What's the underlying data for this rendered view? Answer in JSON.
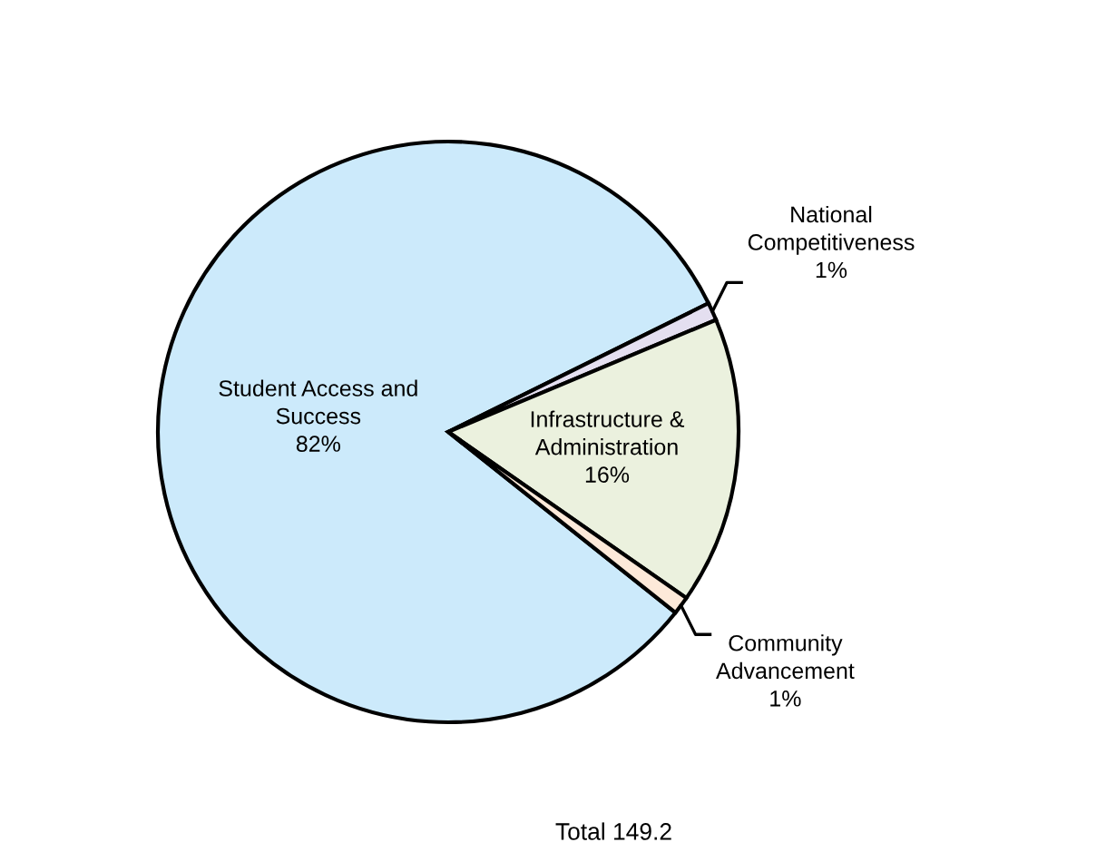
{
  "chart_data": {
    "type": "pie",
    "categories": [
      "Student Access and\nSuccess",
      "National\nCompetitiveness",
      "Infrastructure &\nAdministration",
      "Community\nAdvancement"
    ],
    "values": [
      82,
      1,
      16,
      1
    ],
    "colors": [
      "#cceafb",
      "#e4dff0",
      "#ebf1de",
      "#fde9d9"
    ],
    "value_labels": [
      "82%",
      "1%",
      "16%",
      "1%"
    ],
    "legend": false,
    "annotations": [
      "Total 149.2"
    ]
  }
}
